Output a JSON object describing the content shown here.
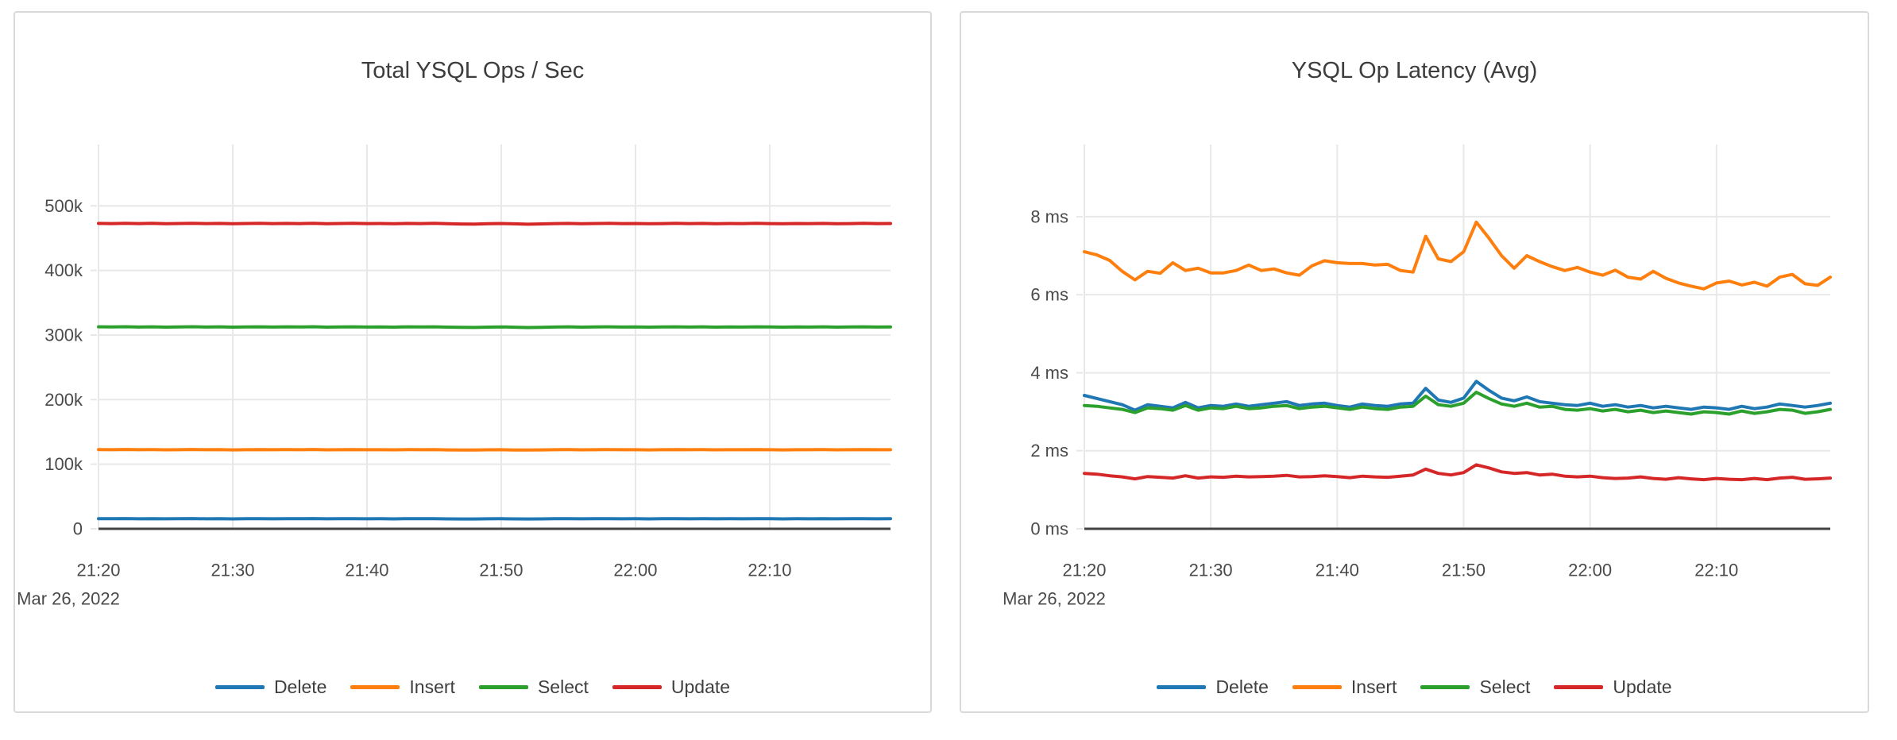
{
  "theme": {
    "background_color": "#ffffff",
    "card_border_color": "#d9d9d9",
    "grid_color": "#e8e8e8",
    "zero_line_color": "#424242",
    "tick_label_color": "#4a4a4a",
    "title_color": "#3d3d3d"
  },
  "chart_data": [
    {
      "type": "line",
      "title": "Total YSQL Ops / Sec",
      "date_label": "Mar 26, 2022",
      "x_tick_labels": [
        "21:20",
        "21:30",
        "21:40",
        "21:50",
        "22:00",
        "22:10"
      ],
      "x_tick_minutes": [
        0,
        10,
        20,
        30,
        40,
        50
      ],
      "x_total_minutes": 59,
      "y_ticks": [
        0,
        100000,
        200000,
        300000,
        400000,
        500000
      ],
      "y_tick_labels": [
        "0",
        "100k",
        "200k",
        "300k",
        "400k",
        "500k"
      ],
      "y_max": 595000,
      "grid": true,
      "legend_position": "bottom-center",
      "series": [
        {
          "name": "Delete",
          "color": "#1f77b4",
          "values": [
            15700,
            15600,
            15800,
            15500,
            15700,
            15500,
            15600,
            15800,
            15500,
            15700,
            15400,
            15600,
            15700,
            15500,
            15700,
            15600,
            15800,
            15500,
            15600,
            15700,
            15500,
            15600,
            15400,
            15700,
            15600,
            15700,
            15400,
            15300,
            15300,
            15500,
            15600,
            15400,
            15300,
            15400,
            15600,
            15700,
            15500,
            15600,
            15700,
            15500,
            15600,
            15400,
            15600,
            15700,
            15500,
            15700,
            15500,
            15600,
            15500,
            15700,
            15600,
            15400,
            15600,
            15500,
            15700,
            15500,
            15600,
            15700,
            15500,
            15600
          ]
        },
        {
          "name": "Insert",
          "color": "#ff7f0e",
          "values": [
            122700,
            122500,
            122800,
            122400,
            122600,
            122300,
            122500,
            122800,
            122400,
            122600,
            122200,
            122500,
            122700,
            122400,
            122600,
            122500,
            122800,
            122300,
            122500,
            122700,
            122400,
            122500,
            122300,
            122600,
            122500,
            122700,
            122200,
            122100,
            122000,
            122300,
            122500,
            122100,
            121900,
            122200,
            122400,
            122600,
            122300,
            122500,
            122700,
            122400,
            122500,
            122200,
            122400,
            122700,
            122400,
            122600,
            122300,
            122500,
            122400,
            122700,
            122500,
            122200,
            122500,
            122400,
            122600,
            122300,
            122500,
            122700,
            122400,
            122500
          ]
        },
        {
          "name": "Select",
          "color": "#2ca02c",
          "values": [
            312800,
            312500,
            312900,
            312400,
            312700,
            312300,
            312600,
            312900,
            312400,
            312700,
            312200,
            312600,
            312800,
            312400,
            312700,
            312500,
            312900,
            312300,
            312600,
            312800,
            312400,
            312600,
            312300,
            312700,
            312500,
            312800,
            312200,
            312000,
            311800,
            312300,
            312600,
            312100,
            311600,
            312000,
            312400,
            312700,
            312300,
            312600,
            312800,
            312400,
            312600,
            312200,
            312500,
            312800,
            312400,
            312700,
            312300,
            312600,
            312400,
            312800,
            312500,
            312200,
            312600,
            312400,
            312700,
            312300,
            312500,
            312800,
            312400,
            312600
          ]
        },
        {
          "name": "Update",
          "color": "#d62728",
          "values": [
            472800,
            472500,
            473100,
            472600,
            472900,
            472400,
            472700,
            473000,
            472500,
            472800,
            472300,
            472700,
            472900,
            472500,
            472800,
            472600,
            473000,
            472400,
            472700,
            472900,
            472500,
            472700,
            472400,
            472800,
            472600,
            472900,
            472300,
            472000,
            471800,
            472400,
            472700,
            472200,
            471600,
            472100,
            472500,
            472800,
            472400,
            472700,
            472900,
            472500,
            472700,
            472300,
            472600,
            472900,
            472500,
            472800,
            472400,
            472700,
            472500,
            472900,
            472600,
            472300,
            472700,
            472500,
            472800,
            472400,
            472600,
            472900,
            472500,
            472700
          ]
        }
      ]
    },
    {
      "type": "line",
      "title": "YSQL Op Latency (Avg)",
      "date_label": "Mar 26, 2022",
      "x_tick_labels": [
        "21:20",
        "21:30",
        "21:40",
        "21:50",
        "22:00",
        "22:10"
      ],
      "x_tick_minutes": [
        0,
        10,
        20,
        30,
        40,
        50
      ],
      "x_total_minutes": 59,
      "y_ticks": [
        0,
        2,
        4,
        6,
        8
      ],
      "y_tick_labels": [
        "0 ms",
        "2 ms",
        "4 ms",
        "6 ms",
        "8 ms"
      ],
      "y_max": 9.85,
      "grid": true,
      "legend_position": "bottom-center",
      "series": [
        {
          "name": "Delete",
          "color": "#1f77b4",
          "values": [
            3.42,
            3.34,
            3.26,
            3.18,
            3.04,
            3.18,
            3.14,
            3.1,
            3.24,
            3.1,
            3.16,
            3.14,
            3.2,
            3.14,
            3.18,
            3.22,
            3.26,
            3.16,
            3.2,
            3.22,
            3.16,
            3.12,
            3.2,
            3.16,
            3.14,
            3.2,
            3.22,
            3.6,
            3.3,
            3.24,
            3.35,
            3.78,
            3.55,
            3.35,
            3.28,
            3.38,
            3.26,
            3.22,
            3.18,
            3.16,
            3.22,
            3.14,
            3.18,
            3.12,
            3.16,
            3.1,
            3.14,
            3.1,
            3.06,
            3.12,
            3.1,
            3.06,
            3.14,
            3.08,
            3.12,
            3.2,
            3.16,
            3.12,
            3.16,
            3.22
          ]
        },
        {
          "name": "Insert",
          "color": "#ff7f0e",
          "values": [
            7.1,
            7.02,
            6.88,
            6.6,
            6.38,
            6.6,
            6.55,
            6.82,
            6.62,
            6.68,
            6.56,
            6.56,
            6.62,
            6.76,
            6.62,
            6.66,
            6.56,
            6.5,
            6.74,
            6.87,
            6.82,
            6.8,
            6.8,
            6.76,
            6.78,
            6.62,
            6.58,
            7.5,
            6.92,
            6.85,
            7.1,
            7.86,
            7.45,
            7.0,
            6.68,
            7.0,
            6.85,
            6.72,
            6.62,
            6.7,
            6.58,
            6.5,
            6.63,
            6.45,
            6.4,
            6.6,
            6.42,
            6.3,
            6.22,
            6.15,
            6.3,
            6.35,
            6.25,
            6.32,
            6.22,
            6.45,
            6.52,
            6.28,
            6.24,
            6.45
          ]
        },
        {
          "name": "Select",
          "color": "#2ca02c",
          "values": [
            3.16,
            3.14,
            3.1,
            3.06,
            2.98,
            3.1,
            3.08,
            3.04,
            3.16,
            3.04,
            3.1,
            3.08,
            3.14,
            3.08,
            3.1,
            3.14,
            3.16,
            3.08,
            3.12,
            3.14,
            3.1,
            3.06,
            3.12,
            3.08,
            3.06,
            3.12,
            3.14,
            3.4,
            3.18,
            3.14,
            3.22,
            3.5,
            3.34,
            3.2,
            3.14,
            3.22,
            3.12,
            3.14,
            3.06,
            3.04,
            3.08,
            3.02,
            3.06,
            3.0,
            3.04,
            2.98,
            3.02,
            2.98,
            2.94,
            3.0,
            2.98,
            2.94,
            3.02,
            2.96,
            3.0,
            3.06,
            3.04,
            2.96,
            3.0,
            3.06
          ]
        },
        {
          "name": "Update",
          "color": "#d62728",
          "values": [
            1.42,
            1.4,
            1.36,
            1.33,
            1.28,
            1.34,
            1.32,
            1.3,
            1.36,
            1.3,
            1.33,
            1.32,
            1.35,
            1.33,
            1.34,
            1.35,
            1.37,
            1.33,
            1.34,
            1.36,
            1.34,
            1.31,
            1.35,
            1.33,
            1.32,
            1.35,
            1.38,
            1.53,
            1.42,
            1.38,
            1.44,
            1.64,
            1.56,
            1.46,
            1.42,
            1.44,
            1.38,
            1.4,
            1.35,
            1.33,
            1.35,
            1.31,
            1.29,
            1.3,
            1.33,
            1.29,
            1.27,
            1.31,
            1.28,
            1.26,
            1.29,
            1.27,
            1.26,
            1.29,
            1.26,
            1.3,
            1.32,
            1.27,
            1.28,
            1.3
          ]
        }
      ]
    }
  ]
}
